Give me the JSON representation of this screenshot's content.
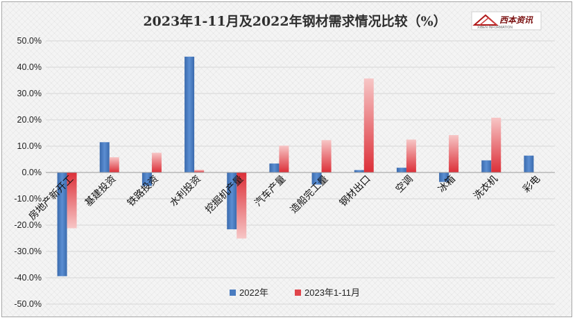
{
  "chart_data": {
    "type": "bar",
    "title": "2023年1-11月及2022年钢材需求情况比较（%）",
    "categories": [
      "房地产新开工",
      "基建投资",
      "铁路投资",
      "水利投资",
      "挖掘机产量",
      "汽车产量",
      "造船完工量",
      "钢材出口",
      "空调",
      "冰箱",
      "洗衣机",
      "彩电"
    ],
    "series": [
      {
        "name": "2022年",
        "values": [
          -39.4,
          11.5,
          -5.1,
          44.0,
          -21.6,
          3.4,
          -4.6,
          0.9,
          1.8,
          -3.6,
          4.6,
          6.4
        ],
        "color": "#4a7cc0"
      },
      {
        "name": "2023年1-11月",
        "values": [
          -21.2,
          5.8,
          7.5,
          1.0,
          -25.1,
          10.2,
          12.3,
          35.7,
          12.5,
          14.2,
          20.8,
          null
        ],
        "color": "#e0454b"
      }
    ],
    "ylim": [
      -50,
      50
    ],
    "yticks": [
      50,
      40,
      30,
      20,
      10,
      0,
      -10,
      -20,
      -30,
      -40,
      -50
    ],
    "ytick_format": "%.1f%",
    "grid": true,
    "legend": "bottom",
    "xlabel": "",
    "ylabel": ""
  },
  "logo": {
    "text": "西本资讯",
    "sub": "XIBEN INFORMATION"
  }
}
